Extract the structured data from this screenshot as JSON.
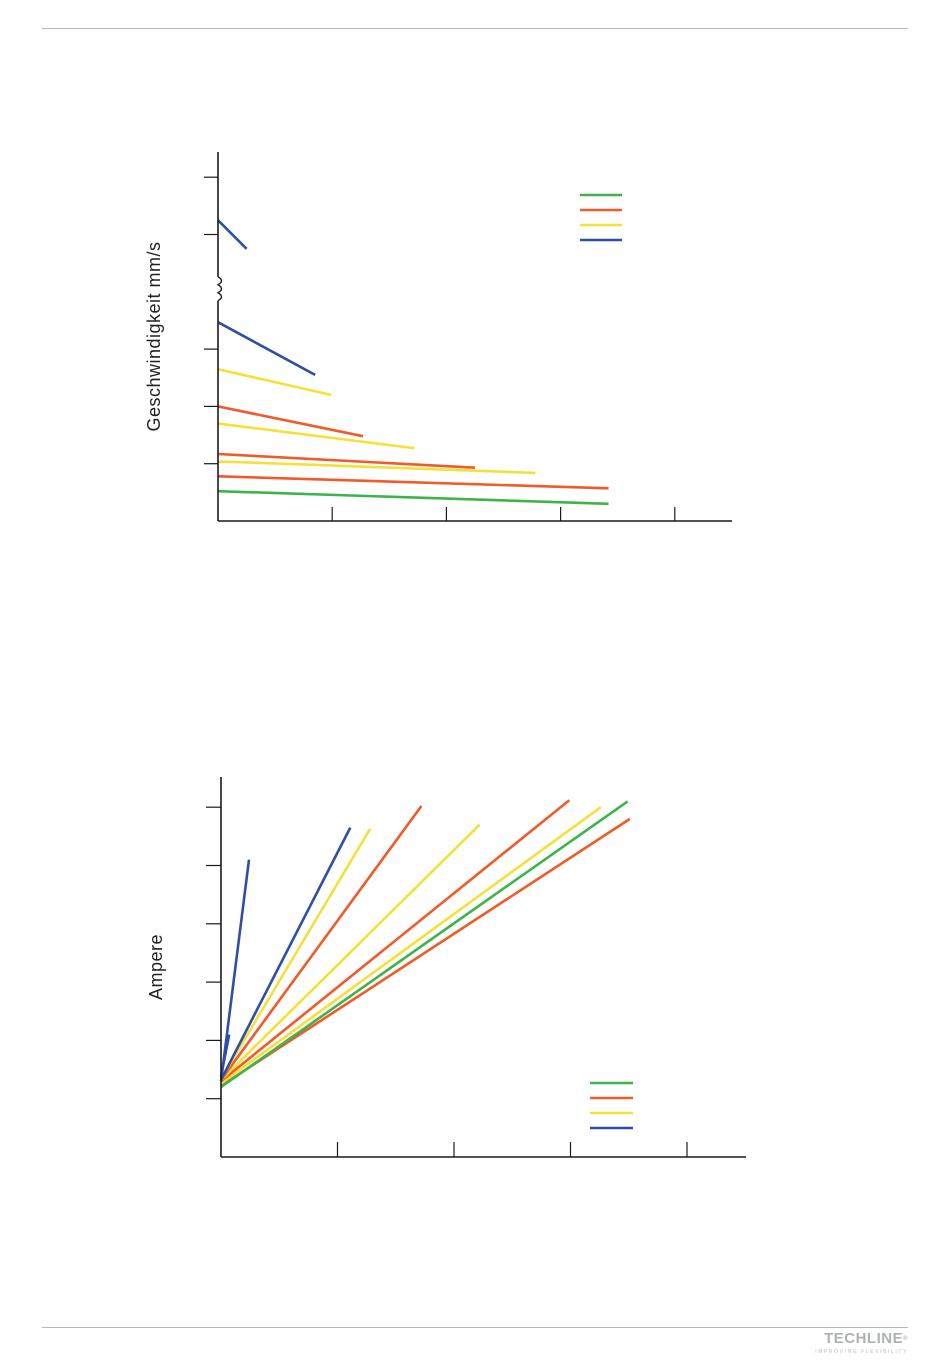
{
  "page": {
    "brand": "TECHLINE",
    "brand_mark": "®",
    "tagline": "IMPROVING FLEXIBILITY"
  },
  "chart_data": [
    {
      "type": "line",
      "title": "",
      "xlabel": "",
      "ylabel": "Geschwindigkeit mm/s",
      "xlim": [
        0,
        4.5
      ],
      "ylim": [
        0,
        6.5
      ],
      "x_ticks": [
        1,
        2,
        3,
        4
      ],
      "y_ticks": [
        1,
        2,
        3,
        5,
        6
      ],
      "axis_break": 4,
      "legend_colors": [
        "#3cb44b",
        "#f15a29",
        "#f5e03a",
        "#2e4fa3"
      ],
      "series": [
        {
          "color": "#3cb44b",
          "points": [
            [
              0,
              0.52
            ],
            [
              3.42,
              0.3
            ]
          ]
        },
        {
          "color": "#f15a29",
          "points": [
            [
              0,
              0.78
            ],
            [
              3.42,
              0.57
            ]
          ]
        },
        {
          "color": "#f5e03a",
          "points": [
            [
              0,
              1.04
            ],
            [
              2.78,
              0.84
            ]
          ]
        },
        {
          "color": "#f15a29",
          "points": [
            [
              0,
              1.17
            ],
            [
              2.25,
              0.93
            ]
          ]
        },
        {
          "color": "#f5e03a",
          "points": [
            [
              0,
              1.7
            ],
            [
              1.72,
              1.27
            ]
          ]
        },
        {
          "color": "#f15a29",
          "points": [
            [
              0,
              2.0
            ],
            [
              1.27,
              1.48
            ]
          ]
        },
        {
          "color": "#f5e03a",
          "points": [
            [
              0,
              2.65
            ],
            [
              0.99,
              2.2
            ]
          ]
        },
        {
          "color": "#2e4fa3",
          "points": [
            [
              0,
              3.47
            ],
            [
              0.85,
              2.55
            ]
          ]
        },
        {
          "color": "#2e4fa3",
          "points": [
            [
              0,
              5.25
            ],
            [
              0.25,
              4.75
            ]
          ]
        }
      ]
    },
    {
      "type": "line",
      "title": "",
      "xlabel": "",
      "ylabel": "Ampere",
      "xlim": [
        0,
        4.5
      ],
      "ylim": [
        0,
        6.5
      ],
      "x_ticks": [
        1,
        2,
        3,
        4
      ],
      "y_ticks": [
        1,
        2,
        3,
        4,
        5,
        6
      ],
      "legend_colors": [
        "#3cb44b",
        "#f15a29",
        "#f5e03a",
        "#2e4fa3"
      ],
      "series": [
        {
          "color": "#f15a29",
          "points": [
            [
              0,
              1.22
            ],
            [
              3.51,
              5.8
            ]
          ]
        },
        {
          "color": "#3cb44b",
          "points": [
            [
              0,
              1.2
            ],
            [
              3.49,
              6.1
            ]
          ]
        },
        {
          "color": "#f5e03a",
          "points": [
            [
              0,
              1.26
            ],
            [
              3.26,
              6.0
            ]
          ]
        },
        {
          "color": "#f15a29",
          "points": [
            [
              0,
              1.3
            ],
            [
              2.99,
              6.12
            ]
          ]
        },
        {
          "color": "#f5e03a",
          "points": [
            [
              0,
              1.32
            ],
            [
              2.22,
              5.7
            ]
          ]
        },
        {
          "color": "#f15a29",
          "points": [
            [
              0,
              1.32
            ],
            [
              1.72,
              6.02
            ]
          ]
        },
        {
          "color": "#f5e03a",
          "points": [
            [
              0,
              1.34
            ],
            [
              1.28,
              5.63
            ]
          ]
        },
        {
          "color": "#2e4fa3",
          "points": [
            [
              0,
              1.32
            ],
            [
              1.11,
              5.65
            ]
          ]
        },
        {
          "color": "#2e4fa3",
          "points": [
            [
              0,
              1.3
            ],
            [
              0.24,
              5.1
            ]
          ]
        },
        {
          "color": "#2e4fa3",
          "points": [
            [
              0,
              1.38
            ],
            [
              0.07,
              2.1
            ]
          ]
        }
      ]
    }
  ]
}
